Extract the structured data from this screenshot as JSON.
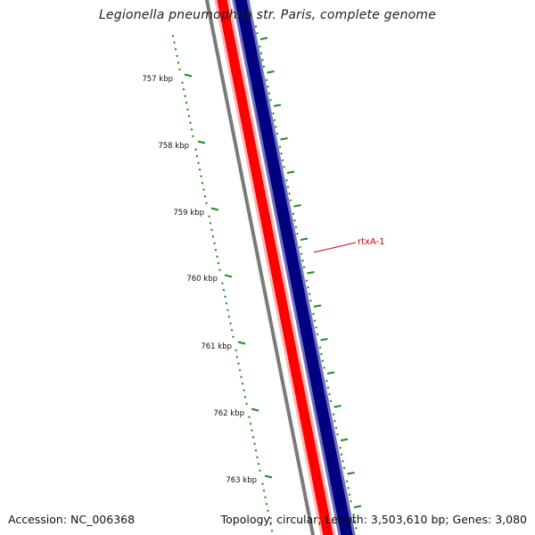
{
  "title": "Legionella pneumophila str. Paris, complete genome",
  "footer": {
    "accession": "Accession: NC_006368",
    "summary": "Topology: circular; Length: 3,503,610 bp; Genes: 3,080"
  },
  "ruler": {
    "labels": [
      "757 kbp",
      "758 kbp",
      "759 kbp",
      "760 kbp",
      "761 kbp",
      "762 kbp",
      "763 kbp"
    ]
  },
  "features": [
    {
      "label": "rtxA-1",
      "color": "#cc0000"
    }
  ],
  "colors": {
    "gc_track": "#888888",
    "reverse_strand": "#ff0000",
    "forward_strand": "#000080",
    "ticks": "#228b22",
    "feature_label": "#cc0000"
  }
}
